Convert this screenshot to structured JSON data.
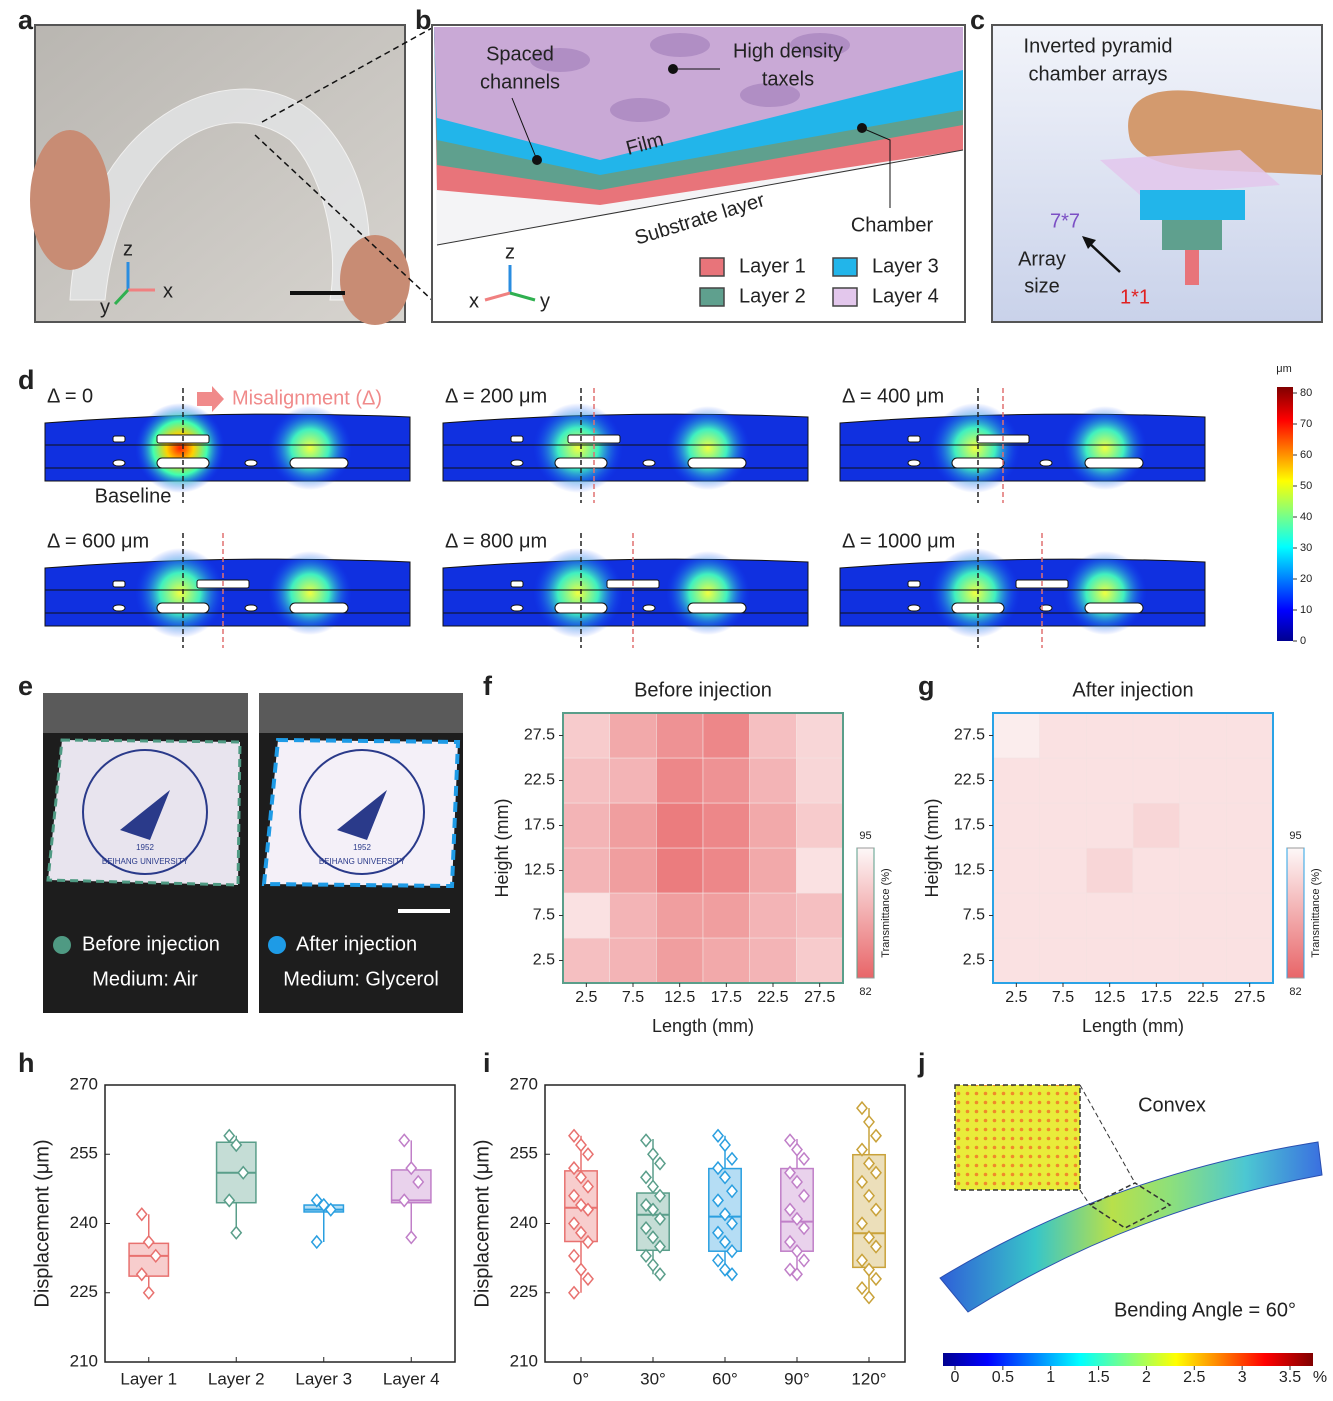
{
  "panel_labels": [
    "a",
    "b",
    "c",
    "d",
    "e",
    "f",
    "g",
    "h",
    "i",
    "j"
  ],
  "panel_a": {
    "axes": [
      "z",
      "x",
      "y"
    ]
  },
  "panel_b": {
    "channels": [
      "Spaced",
      "channels"
    ],
    "taxels": [
      "High density",
      "taxels"
    ],
    "film": "Film",
    "substrate": "Substrate layer",
    "chamber": "Chamber",
    "axes": [
      "z",
      "x",
      "y"
    ],
    "legend": [
      {
        "name": "Layer 1",
        "color": "#e8747a"
      },
      {
        "name": "Layer 2",
        "color": "#5fa08e"
      },
      {
        "name": "Layer 3",
        "color": "#22b5ea"
      },
      {
        "name": "Layer 4",
        "color": "#e3c7ec"
      }
    ]
  },
  "panel_c": {
    "title": [
      "Inverted pyramid",
      "chamber arrays"
    ],
    "max_size": "7*7",
    "array_size": [
      "Array",
      "size"
    ],
    "min_size": "1*1"
  },
  "panel_d": {
    "cases": [
      "Δ = 0",
      "Δ = 200 μm",
      "Δ = 400 μm",
      "Δ = 600 μm",
      "Δ = 800 μm",
      "Δ = 1000 μm"
    ],
    "annotation": "Misalignment (Δ)",
    "baseline": "Baseline",
    "colorbar": {
      "unit": "μm",
      "lim": [
        0,
        80
      ],
      "ticks": [
        0,
        10,
        20,
        30,
        40,
        50,
        60,
        70,
        80
      ]
    }
  },
  "panel_e": {
    "before": {
      "label": "Before injection",
      "medium": "Medium: Air",
      "color": "#4f9a83"
    },
    "after": {
      "label": "After injection",
      "medium": "Medium: Glycerol",
      "color": "#1e9be6"
    },
    "logo_text": "BEIHANG UNIVERSITY",
    "logo_year": "1952"
  },
  "panel_j": {
    "label": "Convex",
    "bending": "Bending Angle = 60°",
    "colorbar": {
      "unit": "%",
      "lim": [
        0,
        3.5
      ],
      "ticks": [
        0,
        0.5,
        1,
        1.5,
        2,
        2.5,
        3,
        3.5
      ]
    }
  },
  "chart_data": [
    {
      "type": "heatmap",
      "title": "Before injection",
      "x_label": "Length (mm)",
      "y_label": "Height (mm)",
      "x": [
        2.5,
        7.5,
        12.5,
        17.5,
        22.5,
        27.5
      ],
      "y": [
        2.5,
        7.5,
        12.5,
        17.5,
        22.5,
        27.5
      ],
      "values": [
        [
          90,
          89,
          87,
          88,
          89,
          91
        ],
        [
          93,
          89,
          87,
          87,
          89,
          90
        ],
        [
          89,
          87,
          84,
          85,
          88,
          93
        ],
        [
          89,
          87,
          84,
          85,
          88,
          91
        ],
        [
          90,
          89,
          85,
          86,
          89,
          92
        ],
        [
          91,
          88,
          86,
          85,
          90,
          92
        ]
      ],
      "zlim": [
        82,
        95
      ],
      "zticks": [
        82,
        95
      ],
      "colorbar_label": "Transmittance (%)",
      "colormap": [
        "#e86568",
        "#fdf8f8"
      ],
      "frame_color": "#5a9e8a"
    },
    {
      "type": "heatmap",
      "title": "After injection",
      "x_label": "Length (mm)",
      "y_label": "Height (mm)",
      "x": [
        2.5,
        7.5,
        12.5,
        17.5,
        22.5,
        27.5
      ],
      "y": [
        2.5,
        7.5,
        12.5,
        17.5,
        22.5,
        27.5
      ],
      "values": [
        [
          93,
          93,
          93,
          93,
          93,
          93
        ],
        [
          93,
          93,
          93,
          93,
          93,
          93
        ],
        [
          93,
          93,
          92,
          93,
          93,
          93
        ],
        [
          93,
          93,
          93,
          92,
          93,
          93
        ],
        [
          93,
          93,
          93,
          93,
          93,
          93
        ],
        [
          94,
          93,
          93,
          93,
          93,
          93
        ]
      ],
      "zlim": [
        82,
        95
      ],
      "zticks": [
        82,
        95
      ],
      "colorbar_label": "Transmittance (%)",
      "colormap": [
        "#e86568",
        "#fdf8f8"
      ],
      "frame_color": "#2aa3e6"
    },
    {
      "type": "box",
      "y_label": "Displacement (μm)",
      "categories": [
        "Layer 1",
        "Layer 2",
        "Layer 3",
        "Layer 4"
      ],
      "colors": [
        "#e8716f",
        "#5a9e8a",
        "#2a9fe0",
        "#c07fc8"
      ],
      "ylim": [
        210,
        270
      ],
      "yticks": [
        210,
        225,
        240,
        255,
        270
      ],
      "boxes": [
        {
          "min": 225,
          "q1": 228.6,
          "median": 233,
          "q3": 235.7,
          "max": 242,
          "points": [
            242,
            236,
            233,
            229,
            225
          ]
        },
        {
          "min": 238,
          "q1": 244.5,
          "median": 251,
          "q3": 257.6,
          "max": 259,
          "points": [
            259,
            257,
            251,
            245,
            238
          ]
        },
        {
          "min": 236,
          "q1": 242.5,
          "median": 243,
          "q3": 244,
          "max": 245,
          "points": [
            245,
            244,
            243,
            236
          ]
        },
        {
          "min": 237,
          "q1": 244.5,
          "median": 245,
          "q3": 251.6,
          "max": 258,
          "points": [
            258,
            252,
            249,
            245,
            237
          ]
        }
      ]
    },
    {
      "type": "box",
      "y_label": "Displacement (μm)",
      "categories": [
        "0°",
        "30°",
        "60°",
        "90°",
        "120°"
      ],
      "colors": [
        "#e8716f",
        "#5a9e8a",
        "#2a9fe0",
        "#c07fc8",
        "#c9a23a"
      ],
      "ylim": [
        210,
        270
      ],
      "yticks": [
        210,
        225,
        240,
        255,
        270
      ],
      "boxes": [
        {
          "min": 225,
          "q1": 236.1,
          "median": 243.4,
          "q3": 251.4,
          "max": 259,
          "points": [
            259,
            257,
            255,
            252,
            250,
            248,
            246,
            244,
            243,
            240,
            238,
            236,
            233,
            230,
            228,
            225
          ]
        },
        {
          "min": 229,
          "q1": 234.2,
          "median": 241.9,
          "q3": 246.6,
          "max": 258.3,
          "points": [
            258,
            255,
            253,
            250,
            248,
            246,
            244,
            243,
            241,
            239,
            237,
            235,
            233,
            231,
            229
          ]
        },
        {
          "min": 229,
          "q1": 234,
          "median": 241.5,
          "q3": 251.9,
          "max": 259,
          "points": [
            259,
            257,
            254,
            252,
            250,
            247,
            245,
            242,
            240,
            238,
            236,
            234,
            232,
            230,
            229
          ]
        },
        {
          "min": 229,
          "q1": 234,
          "median": 240.4,
          "q3": 251.9,
          "max": 258.3,
          "points": [
            258,
            256,
            254,
            251,
            249,
            246,
            243,
            241,
            239,
            236,
            234,
            232,
            230,
            229
          ]
        },
        {
          "min": 224,
          "q1": 230.5,
          "median": 237.9,
          "q3": 254.9,
          "max": 265,
          "points": [
            265,
            262,
            259,
            256,
            253,
            251,
            249,
            246,
            243,
            240,
            237,
            235,
            232,
            230,
            228,
            226,
            224
          ]
        }
      ]
    }
  ]
}
